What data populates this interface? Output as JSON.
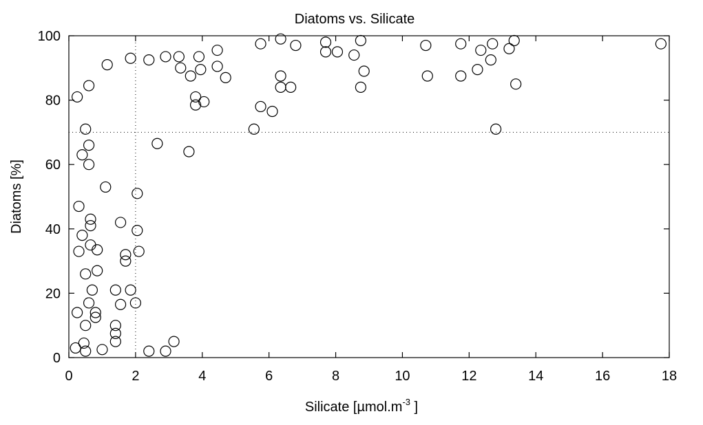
{
  "chart_data": {
    "type": "scatter",
    "title": "Diatoms vs. Silicate",
    "xlabel_main": "Silicate [µmol.m",
    "xlabel_sup": "-3",
    "xlabel_end": " ]",
    "ylabel": "Diatoms [%]",
    "xlim": [
      0,
      18
    ],
    "ylim": [
      0,
      100
    ],
    "xticks": [
      0,
      2,
      4,
      6,
      8,
      10,
      12,
      14,
      16,
      18
    ],
    "yticks": [
      0,
      20,
      40,
      60,
      80,
      100
    ],
    "reference_lines": {
      "x": 2,
      "y": 70
    },
    "grid": false,
    "marker": "open-circle",
    "marker_color": "#000000",
    "points": [
      [
        0.2,
        3
      ],
      [
        0.5,
        2
      ],
      [
        0.45,
        4.5
      ],
      [
        1.0,
        2.5
      ],
      [
        0.5,
        10
      ],
      [
        0.8,
        12.5
      ],
      [
        0.8,
        14
      ],
      [
        0.25,
        14
      ],
      [
        0.6,
        17
      ],
      [
        0.7,
        21
      ],
      [
        0.5,
        26
      ],
      [
        0.85,
        27
      ],
      [
        0.3,
        33
      ],
      [
        0.65,
        35
      ],
      [
        0.85,
        33.5
      ],
      [
        0.4,
        38
      ],
      [
        0.65,
        41
      ],
      [
        0.65,
        43
      ],
      [
        0.3,
        47
      ],
      [
        1.1,
        53
      ],
      [
        0.6,
        60
      ],
      [
        0.4,
        63
      ],
      [
        0.6,
        66
      ],
      [
        0.5,
        71
      ],
      [
        0.25,
        81
      ],
      [
        0.6,
        84.5
      ],
      [
        1.15,
        91
      ],
      [
        1.4,
        5
      ],
      [
        1.4,
        7.5
      ],
      [
        1.4,
        10
      ],
      [
        1.4,
        21
      ],
      [
        1.55,
        16.5
      ],
      [
        1.55,
        42
      ],
      [
        1.7,
        30
      ],
      [
        1.7,
        32
      ],
      [
        1.85,
        21
      ],
      [
        1.85,
        93
      ],
      [
        2.0,
        17
      ],
      [
        2.05,
        39.5
      ],
      [
        2.1,
        33
      ],
      [
        2.05,
        51
      ],
      [
        2.4,
        2
      ],
      [
        2.9,
        2
      ],
      [
        3.15,
        5
      ],
      [
        2.65,
        66.5
      ],
      [
        2.4,
        92.5
      ],
      [
        2.9,
        93.5
      ],
      [
        3.3,
        93.5
      ],
      [
        3.35,
        90
      ],
      [
        3.65,
        87.5
      ],
      [
        3.6,
        64
      ],
      [
        3.8,
        81
      ],
      [
        3.8,
        78.5
      ],
      [
        4.05,
        79.5
      ],
      [
        3.9,
        93.5
      ],
      [
        3.95,
        89.5
      ],
      [
        4.45,
        95.5
      ],
      [
        4.45,
        90.5
      ],
      [
        4.7,
        87
      ],
      [
        5.55,
        71
      ],
      [
        5.75,
        78
      ],
      [
        5.75,
        97.5
      ],
      [
        6.1,
        76.5
      ],
      [
        6.35,
        99
      ],
      [
        6.35,
        87.5
      ],
      [
        6.35,
        84
      ],
      [
        6.65,
        84
      ],
      [
        6.8,
        97
      ],
      [
        7.7,
        98
      ],
      [
        7.7,
        95
      ],
      [
        8.05,
        95
      ],
      [
        8.55,
        94
      ],
      [
        8.75,
        98.5
      ],
      [
        8.75,
        84
      ],
      [
        8.85,
        89
      ],
      [
        10.7,
        97
      ],
      [
        10.75,
        87.5
      ],
      [
        11.75,
        97.5
      ],
      [
        11.75,
        87.5
      ],
      [
        12.25,
        89.5
      ],
      [
        12.35,
        95.5
      ],
      [
        12.7,
        97.5
      ],
      [
        12.65,
        92.5
      ],
      [
        12.8,
        71
      ],
      [
        13.2,
        96
      ],
      [
        13.35,
        98.5
      ],
      [
        13.4,
        85
      ],
      [
        17.75,
        97.5
      ]
    ]
  }
}
